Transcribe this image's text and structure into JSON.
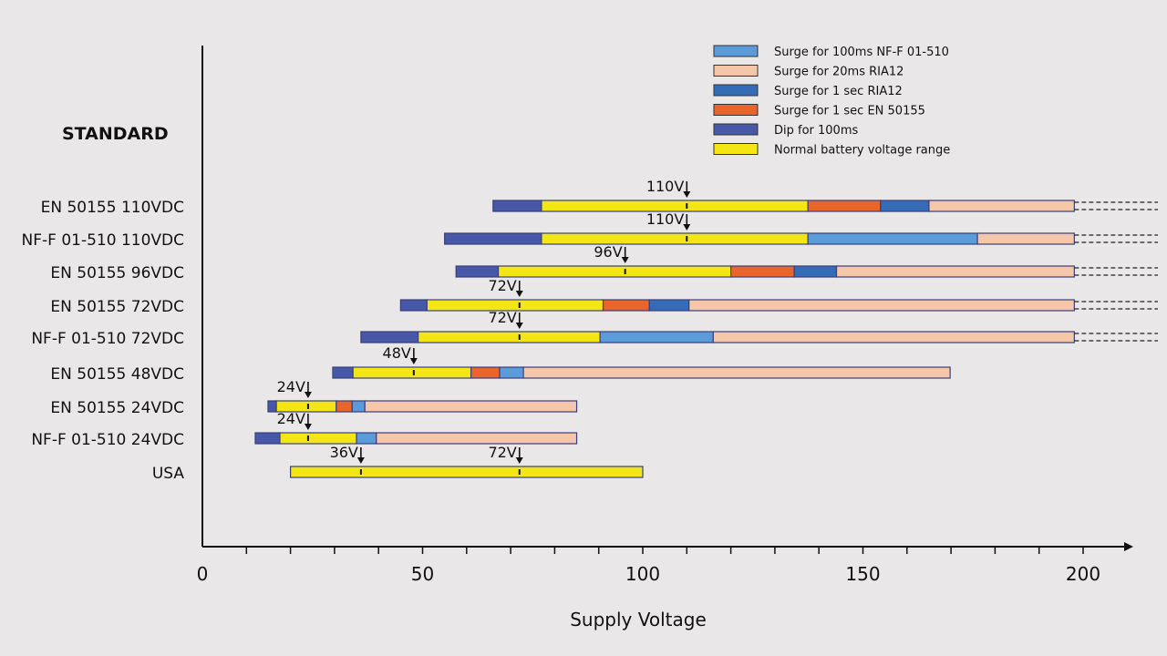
{
  "chart_data": {
    "type": "bar",
    "subtype": "horizontal-range-segments",
    "row_header": "STANDARD",
    "xlabel": "Supply Voltage",
    "xlim": [
      0,
      200
    ],
    "x_ticks": [
      0,
      50,
      100,
      150,
      200
    ],
    "minor_tick_step": 10,
    "legend": [
      {
        "key": "surge100nff",
        "label": "Surge for 100ms NF-F 01-510",
        "color": "#5b9bd9"
      },
      {
        "key": "surge20ria",
        "label": "Surge for 20ms RIA12",
        "color": "#f6c6aa"
      },
      {
        "key": "surge1ria",
        "label": "Surge for 1 sec RIA12",
        "color": "#356cb7"
      },
      {
        "key": "surge1en",
        "label": "Surge for 1 sec EN 50155",
        "color": "#e8652b"
      },
      {
        "key": "dip",
        "label": "Dip for 100ms",
        "color": "#4858a8"
      },
      {
        "key": "normal",
        "label": "Normal battery voltage range",
        "color": "#f4e614"
      }
    ],
    "legend_position": "top-right",
    "rows": [
      {
        "label": "EN 50155 110VDC",
        "continues": true,
        "markers": [
          {
            "value": 110,
            "label": "110V"
          }
        ],
        "segments": [
          [
            "dip",
            66,
            77
          ],
          [
            "normal",
            77,
            137.5
          ],
          [
            "surge1en",
            137.5,
            154
          ],
          [
            "surge1ria",
            154,
            165
          ],
          [
            "surge20ria",
            165,
            198
          ]
        ]
      },
      {
        "label": "NF-F 01-510 110VDC",
        "continues": true,
        "markers": [
          {
            "value": 110,
            "label": "110V"
          }
        ],
        "segments": [
          [
            "dip",
            55,
            77
          ],
          [
            "normal",
            77,
            137.5
          ],
          [
            "surge100nff",
            137.5,
            176
          ],
          [
            "surge20ria",
            176,
            198
          ]
        ]
      },
      {
        "label": "EN 50155 96VDC",
        "continues": true,
        "markers": [
          {
            "value": 96,
            "label": "96V"
          }
        ],
        "segments": [
          [
            "dip",
            57.6,
            67.2
          ],
          [
            "normal",
            67.2,
            120
          ],
          [
            "surge1en",
            120,
            134.4
          ],
          [
            "surge1ria",
            134.4,
            144
          ],
          [
            "surge20ria",
            144,
            198
          ]
        ]
      },
      {
        "label": "EN 50155 72VDC",
        "continues": true,
        "markers": [
          {
            "value": 72,
            "label": "72V"
          }
        ],
        "segments": [
          [
            "dip",
            45,
            51
          ],
          [
            "normal",
            51,
            91
          ],
          [
            "surge1en",
            91,
            101.5
          ],
          [
            "surge1ria",
            101.5,
            110.5
          ],
          [
            "surge20ria",
            110.5,
            198
          ]
        ]
      },
      {
        "label": "NF-F 01-510 72VDC",
        "continues": true,
        "markers": [
          {
            "value": 72,
            "label": "72V"
          }
        ],
        "segments": [
          [
            "dip",
            36,
            49
          ],
          [
            "normal",
            49,
            90.3
          ],
          [
            "surge100nff",
            90.3,
            116
          ],
          [
            "surge20ria",
            116,
            198
          ]
        ]
      },
      {
        "label": "EN 50155 48VDC",
        "continues": false,
        "markers": [
          {
            "value": 48,
            "label": "48V"
          }
        ],
        "segments": [
          [
            "dip",
            29.6,
            34.2
          ],
          [
            "normal",
            34.2,
            61
          ],
          [
            "surge1en",
            61,
            67.5
          ],
          [
            "surge100nff",
            67.5,
            72.9
          ],
          [
            "surge20ria",
            72.9,
            169.8
          ]
        ]
      },
      {
        "label": "EN 50155 24VDC",
        "continues": false,
        "markers": [
          {
            "value": 24,
            "label": "24V"
          }
        ],
        "segments": [
          [
            "dip",
            14.9,
            16.8
          ],
          [
            "normal",
            16.8,
            30.4
          ],
          [
            "surge1en",
            30.4,
            34
          ],
          [
            "surge100nff",
            34,
            36.9
          ],
          [
            "surge20ria",
            36.9,
            85
          ]
        ]
      },
      {
        "label": "NF-F 01-510 24VDC",
        "continues": false,
        "markers": [
          {
            "value": 24,
            "label": "24V"
          }
        ],
        "segments": [
          [
            "dip",
            12,
            17.6
          ],
          [
            "normal",
            17.6,
            35
          ],
          [
            "surge100nff",
            35,
            39.5
          ],
          [
            "surge20ria",
            39.5,
            85
          ]
        ]
      },
      {
        "label": "USA",
        "continues": false,
        "markers": [
          {
            "value": 36,
            "label": "36V"
          },
          {
            "value": 72,
            "label": "72V"
          }
        ],
        "segments": [
          [
            "normal",
            20,
            100
          ]
        ]
      }
    ]
  }
}
